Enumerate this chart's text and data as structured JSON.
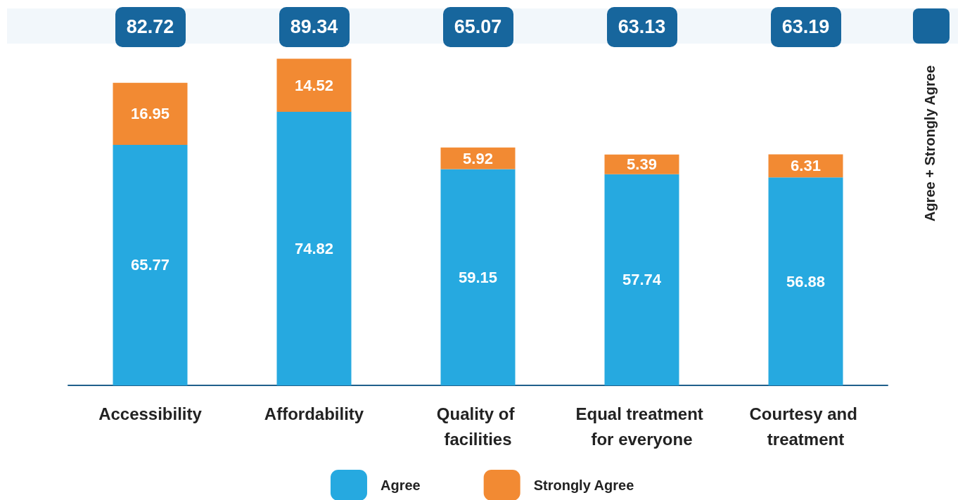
{
  "chart_data": {
    "type": "bar",
    "stacked": true,
    "data_labels": true,
    "legend": "bottom",
    "categories": [
      "Accessibility",
      "Affordability",
      "Quality of facilities",
      "Equal treatment for everyone",
      "Courtesy and treatment"
    ],
    "series": [
      {
        "name": "Agree",
        "color": "#26a9e0",
        "values": [
          65.77,
          74.82,
          59.15,
          57.74,
          56.88
        ]
      },
      {
        "name": "Strongly Agree",
        "color": "#f28a33",
        "values": [
          16.95,
          14.52,
          5.92,
          5.39,
          6.31
        ]
      }
    ],
    "annotations": [
      "82.72",
      "89.34",
      "65.07",
      "63.13",
      "63.19",
      "Agree + Strongly Agree"
    ]
  }
}
